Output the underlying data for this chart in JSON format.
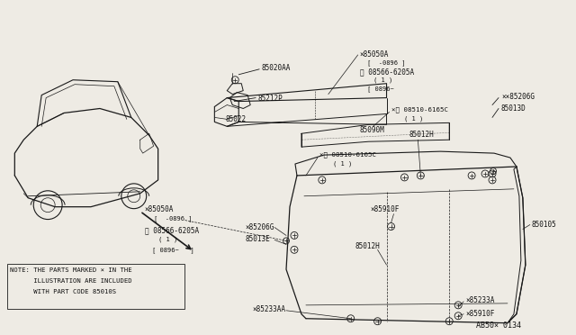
{
  "bg_color": "#eeebe4",
  "line_color": "#1a1a1a",
  "text_color": "#111111",
  "ref_code": "AB50× 0134",
  "note_lines": [
    "NOTE: THE PARTS MARKED × IN THE",
    "      ILLUSTRATION ARE INCLUDED",
    "      WITH PART CODE 85010S"
  ]
}
